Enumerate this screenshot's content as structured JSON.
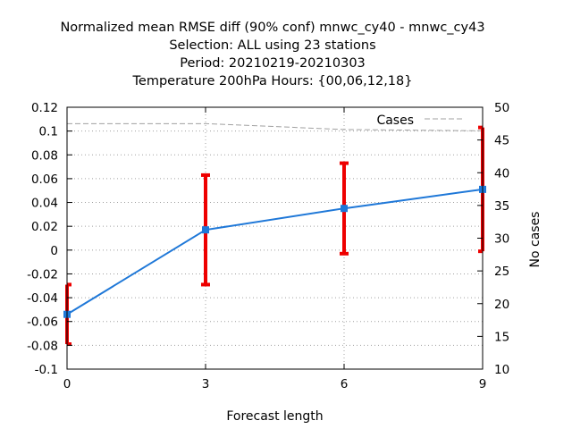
{
  "chart_data": {
    "type": "line",
    "title_lines": [
      "Normalized mean RMSE diff (90% conf) mnwc_cy40 - mnwc_cy43",
      "Selection: ALL using    23 stations",
      "Period: 20210219-20210303",
      "Temperature 200hPa   Hours: {00,06,12,18}"
    ],
    "xlabel": "Forecast length",
    "ylabel": "",
    "y2label": "No cases",
    "x": [
      0,
      3,
      6,
      9
    ],
    "x_ticks": [
      "0",
      "3",
      "6",
      "9"
    ],
    "xlim": [
      0,
      9
    ],
    "ylim": [
      -0.1,
      0.12
    ],
    "y_ticks": [
      "-0.1",
      "-0.08",
      "-0.06",
      "-0.04",
      "-0.02",
      "0",
      "0.02",
      "0.04",
      "0.06",
      "0.08",
      "0.1",
      "0.12"
    ],
    "y2lim": [
      10,
      50
    ],
    "y2_ticks": [
      "10",
      "15",
      "20",
      "25",
      "30",
      "35",
      "40",
      "45",
      "50"
    ],
    "grid": true,
    "legend": {
      "position": "top-right",
      "entries": [
        "Cases"
      ]
    },
    "series": [
      {
        "kind": "line-with-errorbars",
        "axis": "left",
        "color": "#1f78d8",
        "values": [
          -0.054,
          0.017,
          0.035,
          0.051
        ],
        "error_low": [
          -0.079,
          -0.029,
          -0.003,
          -0.001
        ],
        "error_high": [
          -0.029,
          0.063,
          0.073,
          0.103
        ],
        "error_color": "#ee0000"
      },
      {
        "name": "Cases",
        "kind": "dashed-line",
        "axis": "right",
        "color": "#a0a0a0",
        "values": [
          47.5,
          47.5,
          46.6,
          46.4
        ]
      }
    ]
  }
}
